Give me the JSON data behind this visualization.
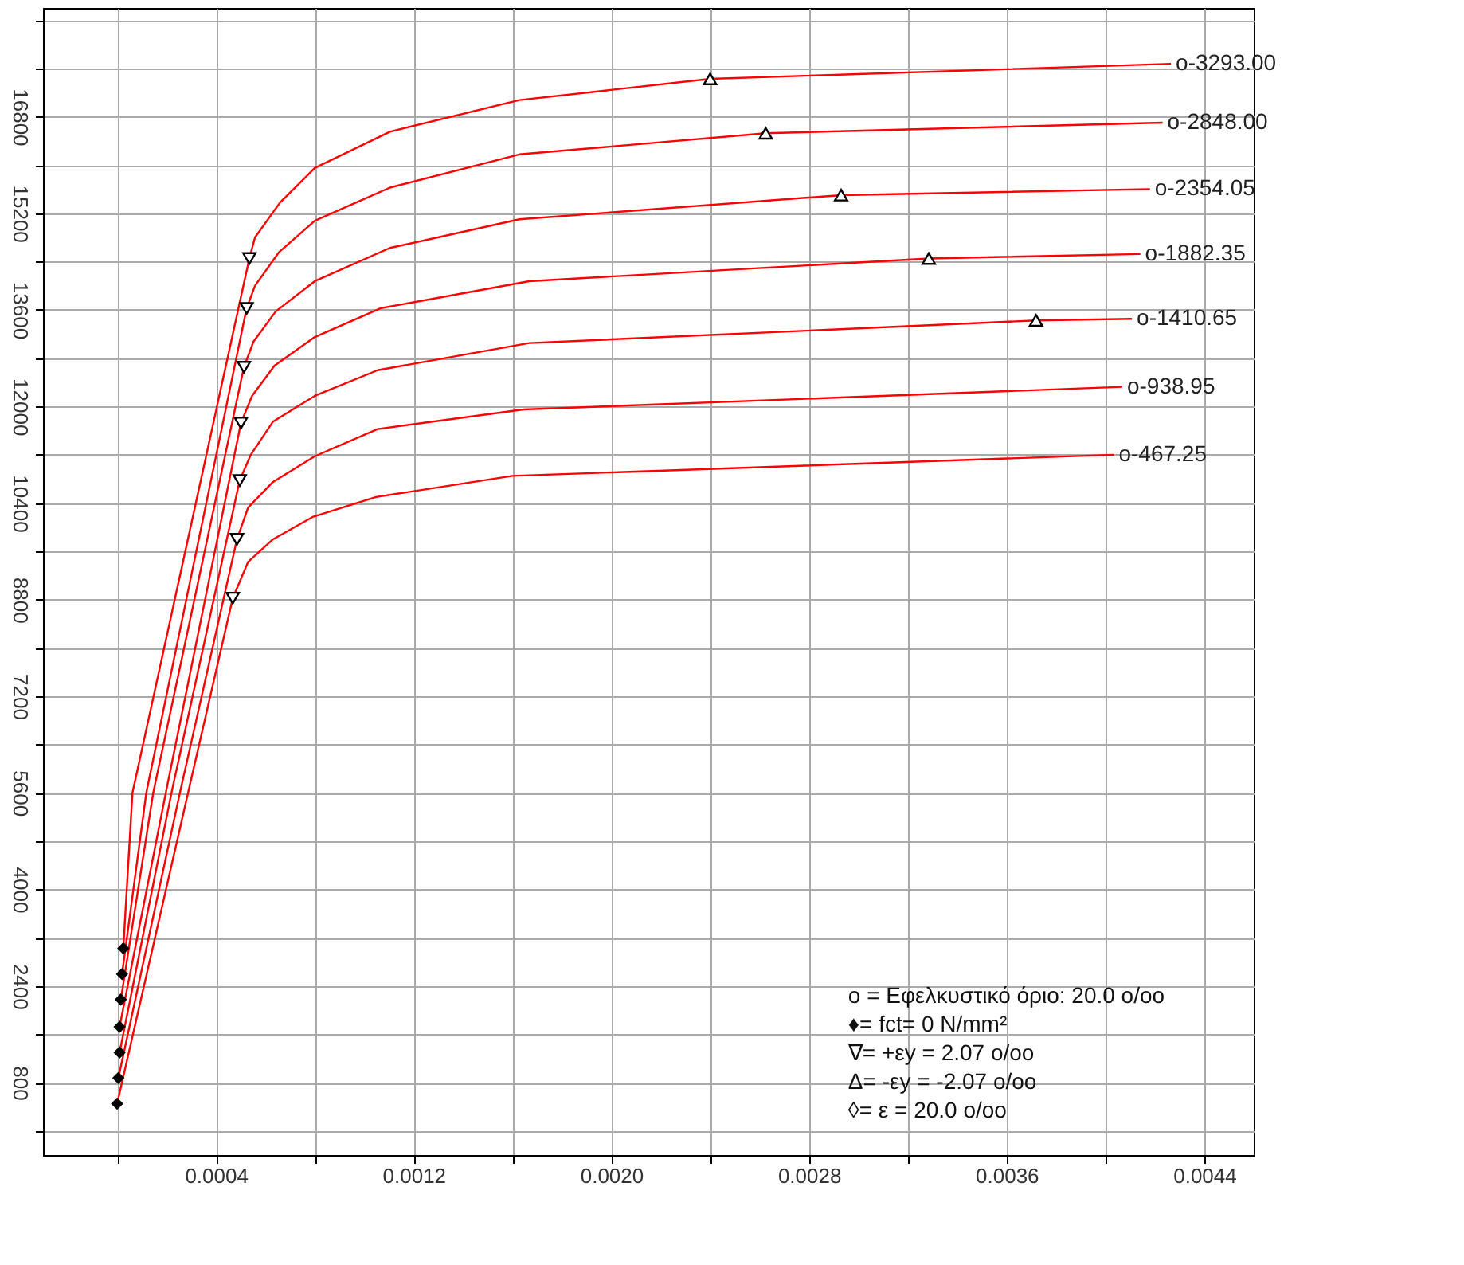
{
  "chart_data": {
    "type": "line",
    "xlim": [
      -0.0003,
      0.0046
    ],
    "ylim": [
      -400,
      18600
    ],
    "xticks": [
      {
        "value": 0,
        "label": null
      },
      0.0004,
      {
        "value": 0.0008,
        "label": null
      },
      0.0012,
      {
        "value": 0.0016,
        "label": null
      },
      {
        "value": 0.002,
        "label": "0.0020"
      },
      {
        "value": 0.0024,
        "label": null
      },
      0.0028,
      {
        "value": 0.0032,
        "label": null
      },
      0.0036,
      {
        "value": 0.004,
        "label": null
      },
      0.0044
    ],
    "yticks": [
      {
        "value": 0,
        "label": null
      },
      800,
      {
        "value": 1600,
        "label": null
      },
      2400,
      {
        "value": 3200,
        "label": null
      },
      4000,
      {
        "value": 4800,
        "label": null
      },
      5600,
      {
        "value": 6400,
        "label": null
      },
      7200,
      {
        "value": 8000,
        "label": null
      },
      8800,
      {
        "value": 9600,
        "label": null
      },
      10400,
      {
        "value": 11200,
        "label": null
      },
      12000,
      {
        "value": 12800,
        "label": null
      },
      13600,
      {
        "value": 14400,
        "label": null
      },
      15200,
      {
        "value": 16000,
        "label": null
      },
      16800,
      {
        "value": 17600,
        "label": null
      },
      {
        "value": 18400,
        "label": null
      }
    ],
    "grid": true,
    "line_style": "solid",
    "series": [
      {
        "name": "o-3293.00",
        "color": "#ff0000",
        "x": [
          2.5e-05,
          6.2e-05,
          0.000535,
          0.000558,
          0.000659,
          0.0008,
          0.001104,
          0.001628,
          0.0024,
          0.004265
        ],
        "values": [
          3025,
          5600,
          14450,
          14800,
          15375,
          15950,
          16550,
          17075,
          17425,
          17675
        ]
      },
      {
        "name": "o-2848.00",
        "color": "#ff0000",
        "x": [
          2e-05,
          0.000118,
          0.000524,
          0.000558,
          0.000654,
          0.0008,
          0.001104,
          0.001628,
          0.002625,
          0.004231
        ],
        "values": [
          2600,
          5600,
          13625,
          14000,
          14550,
          15075,
          15625,
          16175,
          16525,
          16700
        ]
      },
      {
        "name": "o-2354.05",
        "color": "#ff0000",
        "x": [
          1.5e-05,
          0.000146,
          0.000513,
          0.000552,
          0.000642,
          0.0008,
          0.001104,
          0.001628,
          0.00293,
          0.00418
        ],
        "values": [
          2175,
          5600,
          12650,
          13075,
          13575,
          14075,
          14625,
          15100,
          15500,
          15600
        ]
      },
      {
        "name": "o-1882.35",
        "color": "#ff0000",
        "x": [
          1e-05,
          0.000197,
          0.000501,
          0.000546,
          0.000637,
          0.0008,
          0.001065,
          0.001668,
          0.003285,
          0.004141
        ],
        "values": [
          1725,
          5600,
          11725,
          12175,
          12675,
          13150,
          13625,
          14075,
          14450,
          14525
        ]
      },
      {
        "name": "o-1410.65",
        "color": "#ff0000",
        "x": [
          1e-05,
          0.00022,
          0.000496,
          0.000541,
          0.000631,
          0.0008,
          0.001054,
          0.001668,
          0.003719,
          0.004107
        ],
        "values": [
          1300,
          5600,
          10775,
          11200,
          11750,
          12175,
          12600,
          13050,
          13425,
          13450
        ]
      },
      {
        "name": "o-938.95",
        "color": "#ff0000",
        "x": [
          5e-06,
          0.000254,
          0.000485,
          0.00053,
          0.000631,
          0.0008,
          0.001054,
          0.001645,
          0.004068
        ],
        "values": [
          875,
          5600,
          9800,
          10325,
          10750,
          11175,
          11625,
          11950,
          12325
        ]
      },
      {
        "name": "o-467.25",
        "color": "#ff0000",
        "x": [
          0,
          0.000287,
          0.000468,
          0.00053,
          0.000631,
          0.000794,
          0.001048,
          0.0016,
          0.004034
        ],
        "values": [
          450,
          5600,
          8825,
          9425,
          9800,
          10175,
          10500,
          10850,
          11200
        ]
      },
      {
        "type": "scatter",
        "marker": "diamond",
        "color": "#000000",
        "x": [
          2.5e-05,
          2e-05,
          1.5e-05,
          1e-05,
          1e-05,
          5e-06,
          0
        ],
        "values": [
          3025,
          2600,
          2175,
          1725,
          1300,
          875,
          450
        ]
      },
      {
        "type": "scatter",
        "marker": "triangle-down",
        "color": "#000000",
        "x": [
          0.000535,
          0.000524,
          0.000513,
          0.000501,
          0.000496,
          0.000485,
          0.000468
        ],
        "values": [
          14450,
          13625,
          12650,
          11725,
          10775,
          9800,
          8825
        ]
      },
      {
        "type": "scatter",
        "marker": "triangle",
        "color": "#000000",
        "x": [
          0.0024,
          0.002625,
          0.00293,
          0.003285,
          0.003719
        ],
        "values": [
          17425,
          16525,
          15500,
          14450,
          13425
        ]
      }
    ],
    "annotations": [
      "o = Εφελκυστικό όριο: 20.0 o/oo",
      "♦= fct= 0 N/mm²",
      "∇= +εy =  2.07 o/oo",
      "Δ= -εy = -2.07 o/oo",
      "◊= ε = 20.0 o/oo"
    ]
  }
}
